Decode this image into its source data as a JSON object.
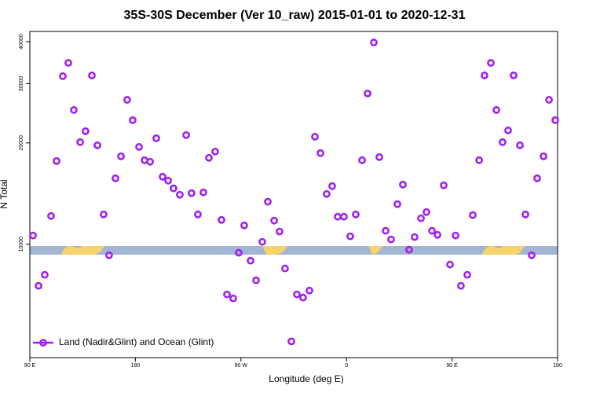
{
  "chart_data": {
    "type": "scatter",
    "title": "35S-30S December (Ver 10_raw)   2015-01-01 to 2020-12-31",
    "x_label": "Longitude (deg E)",
    "y_label": "N Total",
    "yscale": "log",
    "legend": "bottom-left",
    "xlim": [
      90,
      540
    ],
    "ylim": [
      4600,
      42900
    ],
    "xticks": [
      {
        "value": 90,
        "label": "90 E"
      },
      180,
      {
        "value": 270,
        "label": "90 W"
      },
      {
        "value": 360,
        "label": "0"
      },
      {
        "value": 450,
        "label": "90 E"
      },
      {
        "value": 540,
        "label": "180"
      }
    ],
    "yticks": [
      10000,
      20000,
      30000,
      40000
    ],
    "x": [
      92.7,
      97.4,
      102.7,
      108.1,
      112.8,
      118.1,
      122.8,
      127.5,
      132.9,
      137.5,
      142.9,
      147.6,
      152.9,
      157.6,
      163.0,
      167.7,
      173.0,
      177.7,
      183.1,
      187.8,
      192.5,
      197.8,
      203.2,
      207.9,
      212.5,
      217.9,
      223.3,
      227.9,
      233.3,
      238.0,
      242.7,
      248.0,
      253.4,
      258.1,
      263.4,
      268.1,
      272.8,
      278.2,
      282.9,
      288.2,
      292.9,
      298.3,
      302.9,
      307.6,
      313.0,
      317.7,
      323.0,
      328.4,
      333.1,
      337.8,
      343.1,
      347.8,
      352.5,
      357.8,
      363.2,
      367.9,
      373.3,
      378.0,
      383.3,
      388.0,
      393.4,
      398.0,
      403.4,
      408.1,
      413.4,
      418.1,
      423.5,
      428.2,
      432.9,
      437.6,
      442.9,
      448.3,
      453.0,
      457.6,
      463.0,
      467.7,
      473.1,
      477.7,
      483.1,
      487.8,
      493.1,
      497.8,
      502.5,
      507.9,
      512.6,
      517.9,
      522.6,
      528.0,
      532.7,
      538.0
    ],
    "series": [
      {
        "name": "Land (Nadir&Glint) and Ocean (Glint)",
        "color": "#a020f0",
        "values": [
          10610,
          7520,
          8110,
          12130,
          17670,
          31580,
          34590,
          25060,
          20110,
          21670,
          31750,
          19680,
          12260,
          9270,
          15700,
          18250,
          26870,
          23370,
          19460,
          17770,
          17580,
          20650,
          15870,
          15450,
          14650,
          14030,
          21100,
          14180,
          12260,
          14260,
          18060,
          18850,
          11810,
          7090,
          6900,
          9430,
          11370,
          8930,
          7810,
          10160,
          13370,
          11750,
          10900,
          8470,
          5140,
          7090,
          6940,
          7280,
          20870,
          18650,
          14100,
          14880,
          12070,
          12070,
          10550,
          12260,
          17770,
          28050,
          39780,
          18150,
          10960,
          10330,
          13150,
          15040,
          9630,
          10500,
          11940,
          12460,
          10960,
          10660,
          14960,
          8700,
          10610,
          7520,
          8110,
          12200,
          17770,
          31750,
          34590,
          25060,
          20110,
          21790,
          31750,
          19680,
          12260,
          9270,
          15700,
          18250,
          26870,
          23370
        ]
      }
    ]
  }
}
